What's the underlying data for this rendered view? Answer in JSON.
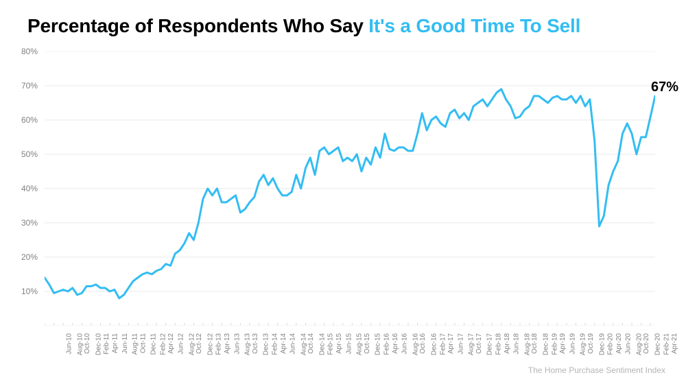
{
  "title": {
    "part1": "Percentage of Respondents Who Say ",
    "part2": "It's a Good Time To Sell",
    "part1_color": "#000000",
    "part2_color": "#33bdf2",
    "fontsize": 28,
    "fontweight": 700
  },
  "source": {
    "text": "The Home Purchase Sentiment Index",
    "color": "#b5b5b5",
    "fontsize": 12
  },
  "chart": {
    "type": "line",
    "background_color": "#ffffff",
    "grid_color": "#e8e8e8",
    "axis_color": "#dcdcdc",
    "ylim": [
      0,
      80
    ],
    "yticks": [
      0,
      10,
      20,
      30,
      40,
      50,
      60,
      70,
      80
    ],
    "ytick_suffix": "%",
    "ytick_color": "#808080",
    "ytick_fontsize": 12,
    "xtick_color": "#808080",
    "xtick_fontsize": 10,
    "line_color": "#33bdf2",
    "line_width": 3,
    "end_label": {
      "text": "67%",
      "fontsize": 20,
      "fontweight": 700,
      "color": "#000000"
    },
    "x_labels": [
      "Jun-10",
      "Aug-10",
      "Oct-10",
      "Dec-10",
      "Feb-11",
      "Apr-11",
      "Jun-11",
      "Aug-11",
      "Oct-11",
      "Dec-11",
      "Feb-12",
      "Apr-12",
      "Jun-12",
      "Aug-12",
      "Oct-12",
      "Dec-12",
      "Feb-13",
      "Apr-13",
      "Jun-13",
      "Aug-13",
      "Oct-13",
      "Dec-13",
      "Feb-14",
      "Apr-14",
      "Jun-14",
      "Aug-14",
      "Oct-14",
      "Dec-14",
      "Feb-15",
      "Apr-15",
      "Jun-15",
      "Aug-15",
      "Oct-15",
      "Dec-15",
      "Feb-16",
      "Apr-16",
      "Jun-16",
      "Aug-16",
      "Oct-16",
      "Dec-16",
      "Feb-17",
      "Apr-17",
      "Jun-17",
      "Aug-17",
      "Oct-17",
      "Dec-17",
      "Feb-18",
      "Apr-18",
      "Jun-18",
      "Aug-18",
      "Oct-18",
      "Dec-18",
      "Feb-19",
      "Apr-19",
      "Jun-19",
      "Aug-19",
      "Oct-19",
      "Dec-19",
      "Feb-20",
      "Apr-20",
      "Jun-20",
      "Aug-20",
      "Oct-20",
      "Dec-20",
      "Feb-21",
      "Apr-21"
    ],
    "values": [
      14,
      12,
      9.5,
      10,
      10.5,
      10,
      11,
      9,
      9.5,
      11.5,
      11.5,
      12,
      11,
      11,
      10,
      10.5,
      8,
      9,
      11,
      13,
      14,
      15,
      15.5,
      15,
      16,
      16.5,
      18,
      17.5,
      21,
      22,
      24,
      27,
      25,
      30,
      37,
      40,
      38,
      40,
      36,
      36,
      37,
      38,
      33,
      34,
      36,
      37.5,
      42,
      44,
      41,
      43,
      40,
      38,
      38,
      39,
      44,
      40,
      46,
      49,
      44,
      51,
      52,
      50,
      51,
      52,
      48,
      49,
      48,
      50,
      45,
      49,
      47,
      52,
      49,
      56,
      51.5,
      51,
      52,
      52,
      51,
      51,
      56,
      62,
      57,
      60,
      61,
      59,
      58,
      62,
      63,
      60.5,
      62,
      60,
      64,
      65,
      66,
      64,
      66,
      68,
      69,
      66,
      64,
      60.5,
      61,
      63,
      64,
      67,
      67,
      66,
      65,
      66.5,
      67,
      66,
      66,
      67,
      65,
      67,
      64,
      66,
      54,
      29,
      32,
      41,
      45,
      48,
      56,
      59,
      56,
      50,
      55,
      55,
      61,
      67
    ]
  }
}
